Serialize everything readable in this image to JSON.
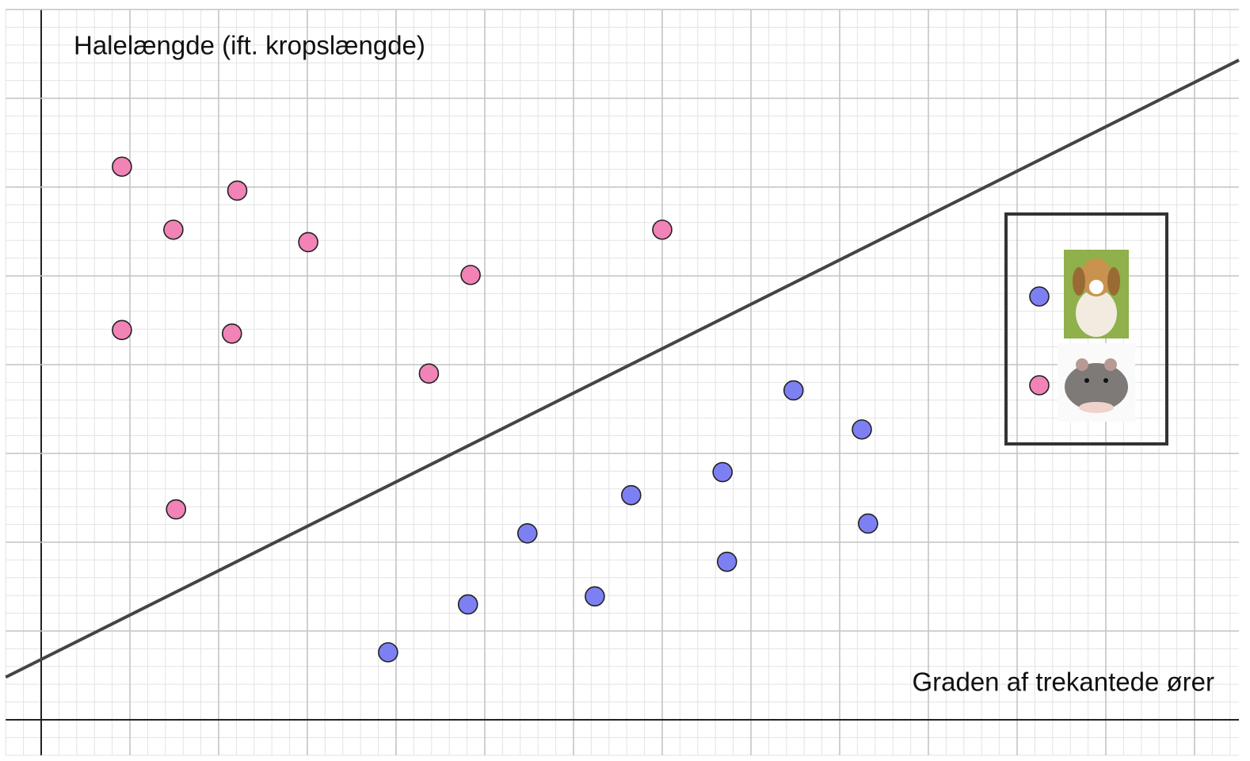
{
  "chart_data": {
    "type": "scatter",
    "y_label": "Halelængde (ift. kropslængde)",
    "x_label": "Graden af trekantede ører",
    "xlim": [
      -0.4,
      13.5
    ],
    "ylim": [
      -0.4,
      8.0
    ],
    "xticks": [
      0,
      1,
      2,
      3,
      4,
      5,
      6,
      7,
      8,
      9,
      10,
      11,
      12,
      13
    ],
    "yticks": [
      0,
      1,
      2,
      3,
      4,
      5,
      6,
      7,
      8
    ],
    "grid": true,
    "series": [
      {
        "color": "#f283b6",
        "x": [
          0.91,
          2.21,
          1.49,
          3.01,
          4.84,
          7.0,
          0.91,
          2.15,
          4.37,
          1.52
        ],
        "values": [
          6.23,
          5.96,
          5.52,
          5.38,
          5.01,
          5.52,
          4.39,
          4.35,
          3.9,
          2.37
        ]
      },
      {
        "color": "#7d80f2",
        "x": [
          8.48,
          9.25,
          7.68,
          6.65,
          5.48,
          9.32,
          7.73,
          4.81,
          6.24,
          3.91
        ],
        "values": [
          3.71,
          3.27,
          2.79,
          2.53,
          2.1,
          2.21,
          1.78,
          1.3,
          1.39,
          0.76
        ]
      }
    ],
    "boundary": {
      "x": [
        -0.4,
        13.5
      ],
      "values": [
        0.48,
        7.43
      ],
      "color": "#444444"
    }
  }
}
